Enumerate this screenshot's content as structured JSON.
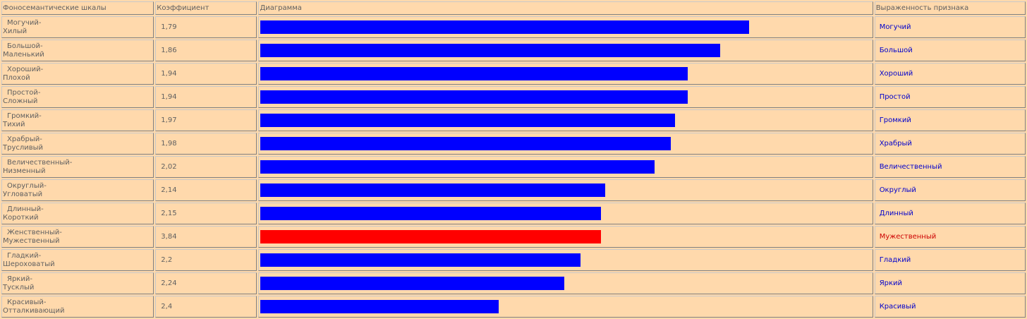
{
  "headers": {
    "scale": "Фоносемантические шкалы",
    "coef": "Коэффициент",
    "diagram": "Диаграмма",
    "sign": "Выраженность признака"
  },
  "colors": {
    "normal_bar": "#0000ff",
    "highlight_bar": "#ff0000",
    "normal_text": "#0000cc",
    "highlight_text": "#cc0000"
  },
  "rows": [
    {
      "top": "Могучий-",
      "bottom": "Хилый",
      "coef": "1,79",
      "sign": "Могучий",
      "bar": 1.79,
      "highlight": false
    },
    {
      "top": "Большой-",
      "bottom": "Маленький",
      "coef": "1,86",
      "sign": "Большой",
      "bar": 1.86,
      "highlight": false
    },
    {
      "top": "Хороший-",
      "bottom": "Плохой",
      "coef": "1,94",
      "sign": "Хороший",
      "bar": 1.94,
      "highlight": false
    },
    {
      "top": "Простой-",
      "bottom": "Сложный",
      "coef": "1,94",
      "sign": "Простой",
      "bar": 1.94,
      "highlight": false
    },
    {
      "top": "Громкий-",
      "bottom": "Тихий",
      "coef": "1,97",
      "sign": "Громкий",
      "bar": 1.97,
      "highlight": false
    },
    {
      "top": "Храбрый-",
      "bottom": "Трусливый",
      "coef": "1,98",
      "sign": "Храбрый",
      "bar": 1.98,
      "highlight": false
    },
    {
      "top": "Величественный-",
      "bottom": "Низменный",
      "coef": "2,02",
      "sign": "Величественный",
      "bar": 2.02,
      "highlight": false
    },
    {
      "top": "Округлый-",
      "bottom": "Угловатый",
      "coef": "2,14",
      "sign": "Округлый",
      "bar": 2.14,
      "highlight": false
    },
    {
      "top": "Длинный-",
      "bottom": "Короткий",
      "coef": "2,15",
      "sign": "Длинный",
      "bar": 2.15,
      "highlight": false
    },
    {
      "top": "Женственный-",
      "bottom": "Мужественный",
      "coef": "3,84",
      "sign": "Мужественный",
      "bar": 2.15,
      "highlight": true
    },
    {
      "top": "Гладкий-",
      "bottom": "Шероховатый",
      "coef": "2,2",
      "sign": "Гладкий",
      "bar": 2.2,
      "highlight": false
    },
    {
      "top": "Яркий-",
      "bottom": "Тусклый",
      "coef": "2,24",
      "sign": "Яркий",
      "bar": 2.24,
      "highlight": false
    },
    {
      "top": "Красивый-",
      "bottom": "Отталкивающий",
      "coef": "2,4",
      "sign": "Красивый",
      "bar": 2.4,
      "highlight": false
    }
  ],
  "chart_data": {
    "type": "bar",
    "orientation": "horizontal",
    "categories": [
      "Могучий-Хилый",
      "Большой-Маленький",
      "Хороший-Плохой",
      "Простой-Сложный",
      "Громкий-Тихий",
      "Храбрый-Трусливый",
      "Величественный-Низменный",
      "Округлый-Угловатый",
      "Длинный-Короткий",
      "Женственный-Мужественный",
      "Гладкий-Шероховатый",
      "Яркий-Тусклый",
      "Красивый-Отталкивающий"
    ],
    "values": [
      1.79,
      1.86,
      1.94,
      1.94,
      1.97,
      1.98,
      2.02,
      2.14,
      2.15,
      3.84,
      2.2,
      2.24,
      2.4
    ],
    "title": "",
    "xlabel": "",
    "ylabel": "",
    "note": "Lower coefficient draws a longer bar; highlighted row (red) is drawn at the length of the 2,15 row.",
    "grid": false
  }
}
